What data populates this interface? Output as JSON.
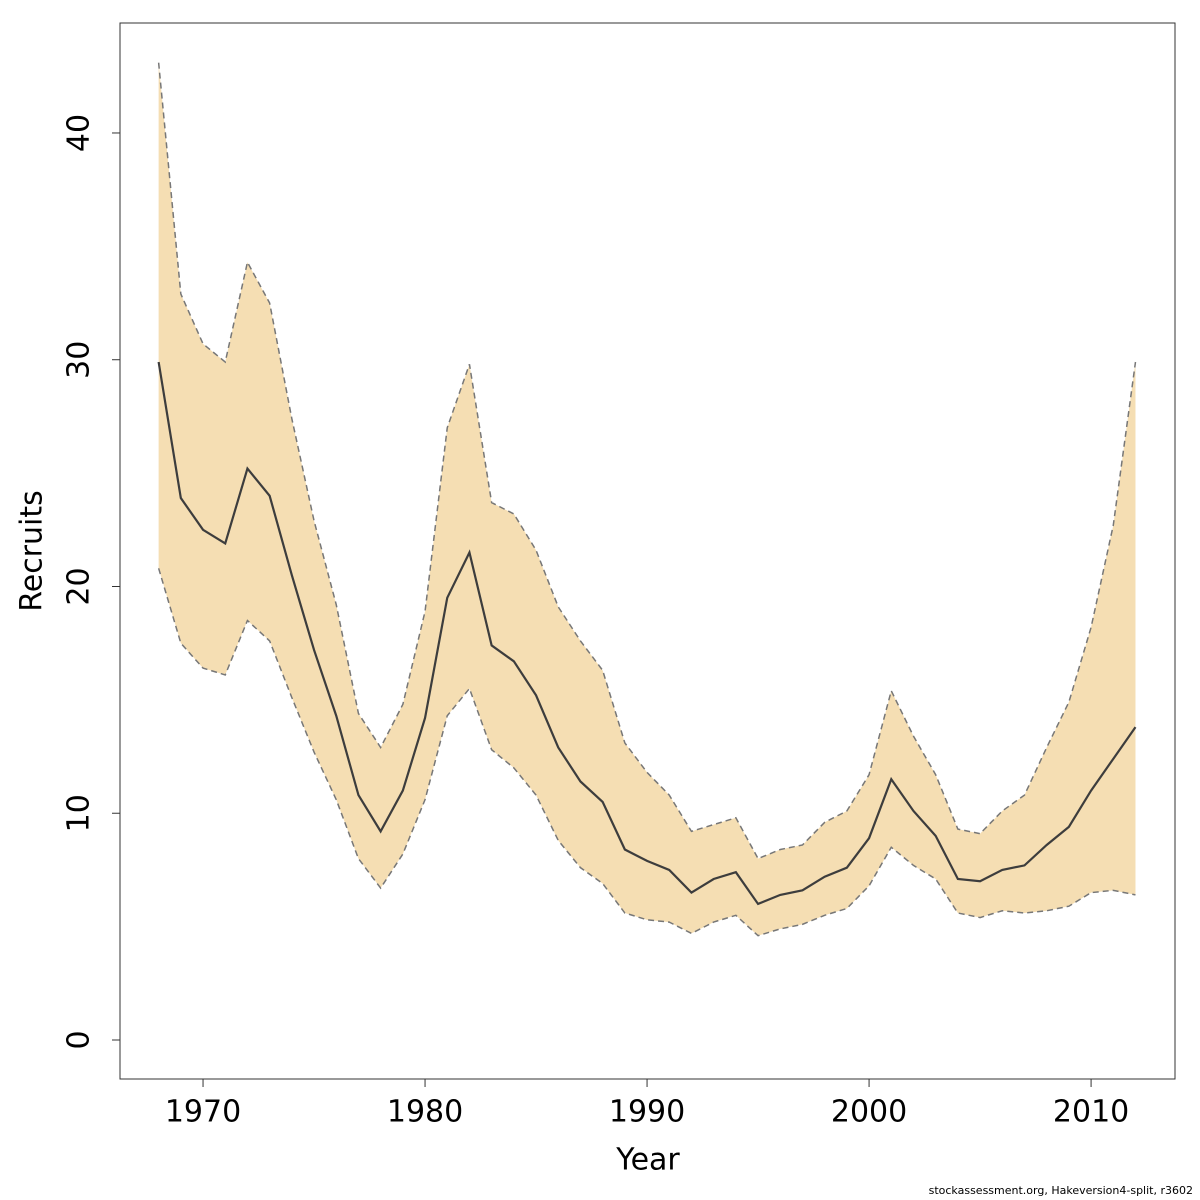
{
  "chart_data": {
    "type": "line-band",
    "x_label": "Year",
    "y_label": "Recruits",
    "footnote": "stockassessment.org, Hakeversion4-split, r3602",
    "x": [
      1968,
      1969,
      1970,
      1971,
      1972,
      1973,
      1974,
      1975,
      1976,
      1977,
      1978,
      1979,
      1980,
      1981,
      1982,
      1983,
      1984,
      1985,
      1986,
      1987,
      1988,
      1989,
      1990,
      1991,
      1992,
      1993,
      1994,
      1995,
      1996,
      1997,
      1998,
      1999,
      2000,
      2001,
      2002,
      2003,
      2004,
      2005,
      2006,
      2007,
      2008,
      2009,
      2010,
      2011,
      2012
    ],
    "values": [
      29.9,
      23.9,
      22.5,
      21.9,
      25.2,
      24.0,
      20.5,
      17.2,
      14.3,
      10.8,
      9.2,
      11.0,
      14.2,
      19.5,
      21.5,
      17.4,
      16.7,
      15.2,
      12.9,
      11.4,
      10.5,
      8.4,
      7.9,
      7.5,
      6.5,
      7.1,
      7.4,
      6.0,
      6.4,
      6.6,
      7.2,
      7.6,
      8.9,
      11.5,
      10.1,
      9.0,
      7.1,
      7.0,
      7.5,
      7.7,
      8.6,
      9.4,
      11.0,
      12.4,
      13.8
    ],
    "upper": [
      43.1,
      32.9,
      30.7,
      29.9,
      34.3,
      32.5,
      27.4,
      22.9,
      19.2,
      14.4,
      12.9,
      14.8,
      18.9,
      27.0,
      29.8,
      23.7,
      23.2,
      21.6,
      19.1,
      17.6,
      16.3,
      13.1,
      11.8,
      10.8,
      9.2,
      9.5,
      9.8,
      8.0,
      8.4,
      8.6,
      9.6,
      10.1,
      11.7,
      15.4,
      13.4,
      11.7,
      9.3,
      9.1,
      10.1,
      10.8,
      12.9,
      14.9,
      18.2,
      22.7,
      29.9
    ],
    "lower": [
      20.8,
      17.5,
      16.4,
      16.1,
      18.5,
      17.6,
      15.1,
      12.7,
      10.6,
      8.0,
      6.7,
      8.2,
      10.6,
      14.3,
      15.5,
      12.8,
      12.0,
      10.8,
      8.8,
      7.6,
      6.9,
      5.6,
      5.3,
      5.2,
      4.7,
      5.2,
      5.5,
      4.6,
      4.9,
      5.1,
      5.5,
      5.8,
      6.8,
      8.5,
      7.7,
      7.1,
      5.6,
      5.4,
      5.7,
      5.6,
      5.7,
      5.9,
      6.5,
      6.6,
      6.4
    ],
    "line_color": "#3d3d3d",
    "band_color": "#f5deb3",
    "band_edge_color": "#777777",
    "xlim": [
      1966.26,
      2013.78
    ],
    "ylim": [
      -1.72,
      44.85
    ],
    "xticks": [
      1970,
      1980,
      1990,
      2000,
      2010
    ],
    "yticks": [
      0,
      10,
      20,
      30,
      40
    ]
  }
}
